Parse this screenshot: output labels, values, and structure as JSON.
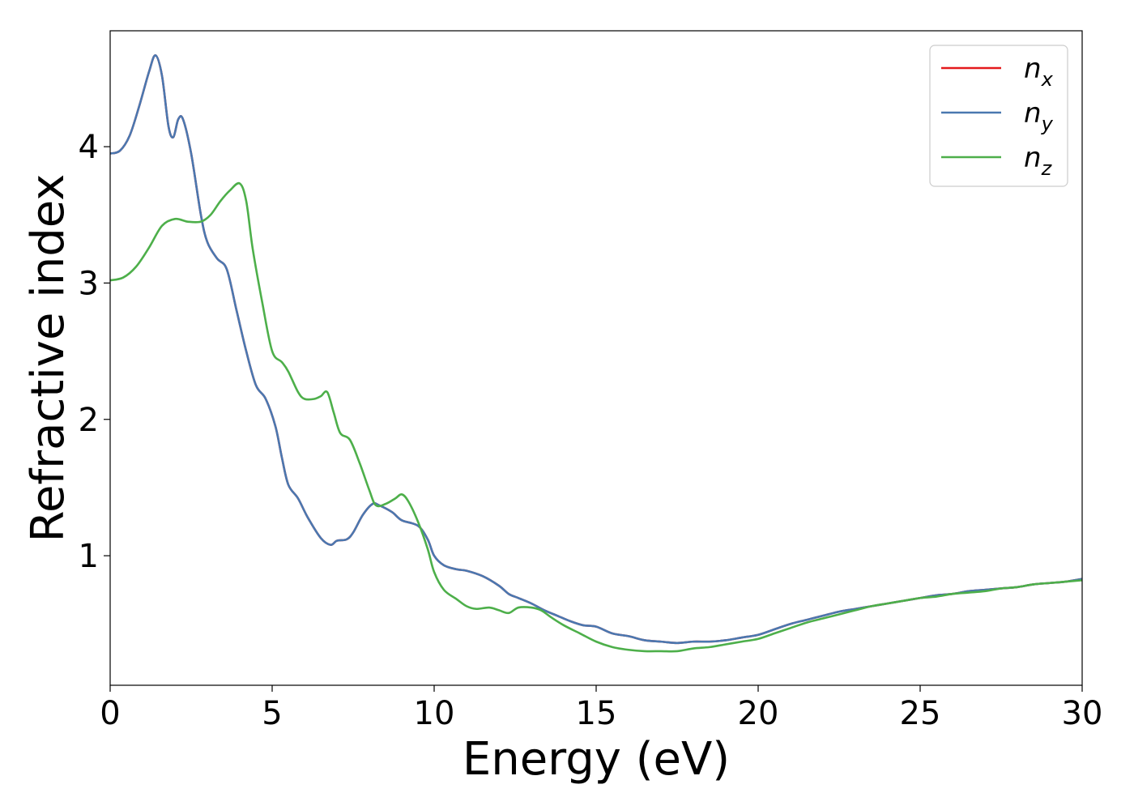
{
  "chart_data": {
    "type": "line",
    "title": "",
    "xlabel": "Energy (eV)",
    "ylabel": "Refractive index",
    "xlim": [
      0,
      30
    ],
    "ylim": [
      0.05,
      4.85
    ],
    "xticks": [
      0,
      5,
      10,
      15,
      20,
      25,
      30
    ],
    "yticks": [
      1,
      2,
      3,
      4
    ],
    "xtick_labels": [
      "0",
      "5",
      "10",
      "15",
      "20",
      "25",
      "30"
    ],
    "ytick_labels": [
      "1",
      "2",
      "3",
      "4"
    ],
    "grid": false,
    "legend_position": "top-right",
    "series": [
      {
        "name": "n_x",
        "symbol": "n",
        "subscript": "x",
        "color": "#e41a1c",
        "points": [
          [
            0,
            3.95
          ],
          [
            0.3,
            3.97
          ],
          [
            0.6,
            4.08
          ],
          [
            0.9,
            4.3
          ],
          [
            1.2,
            4.55
          ],
          [
            1.4,
            4.67
          ],
          [
            1.6,
            4.52
          ],
          [
            1.8,
            4.15
          ],
          [
            1.95,
            4.07
          ],
          [
            2.1,
            4.2
          ],
          [
            2.25,
            4.2
          ],
          [
            2.5,
            3.95
          ],
          [
            2.8,
            3.5
          ],
          [
            3.0,
            3.3
          ],
          [
            3.3,
            3.18
          ],
          [
            3.6,
            3.1
          ],
          [
            3.9,
            2.8
          ],
          [
            4.2,
            2.5
          ],
          [
            4.5,
            2.25
          ],
          [
            4.8,
            2.15
          ],
          [
            5.1,
            1.95
          ],
          [
            5.3,
            1.72
          ],
          [
            5.5,
            1.52
          ],
          [
            5.8,
            1.42
          ],
          [
            6.1,
            1.28
          ],
          [
            6.5,
            1.13
          ],
          [
            6.8,
            1.08
          ],
          [
            7.0,
            1.11
          ],
          [
            7.3,
            1.12
          ],
          [
            7.5,
            1.17
          ],
          [
            7.8,
            1.3
          ],
          [
            8.1,
            1.38
          ],
          [
            8.3,
            1.37
          ],
          [
            8.7,
            1.32
          ],
          [
            9.0,
            1.26
          ],
          [
            9.5,
            1.22
          ],
          [
            9.8,
            1.12
          ],
          [
            10.0,
            1.0
          ],
          [
            10.3,
            0.93
          ],
          [
            10.7,
            0.9
          ],
          [
            11.0,
            0.89
          ],
          [
            11.5,
            0.85
          ],
          [
            12.0,
            0.78
          ],
          [
            12.3,
            0.72
          ],
          [
            12.6,
            0.69
          ],
          [
            13.0,
            0.65
          ],
          [
            13.4,
            0.6
          ],
          [
            13.8,
            0.56
          ],
          [
            14.2,
            0.52
          ],
          [
            14.6,
            0.49
          ],
          [
            15.0,
            0.48
          ],
          [
            15.5,
            0.43
          ],
          [
            16.0,
            0.41
          ],
          [
            16.5,
            0.38
          ],
          [
            17.0,
            0.37
          ],
          [
            17.5,
            0.36
          ],
          [
            18.0,
            0.37
          ],
          [
            18.5,
            0.37
          ],
          [
            19.0,
            0.38
          ],
          [
            19.5,
            0.4
          ],
          [
            20.0,
            0.42
          ],
          [
            20.5,
            0.46
          ],
          [
            21.0,
            0.5
          ],
          [
            21.5,
            0.53
          ],
          [
            22.0,
            0.56
          ],
          [
            22.5,
            0.59
          ],
          [
            23.0,
            0.61
          ],
          [
            23.5,
            0.63
          ],
          [
            24.0,
            0.65
          ],
          [
            24.5,
            0.67
          ],
          [
            25.0,
            0.69
          ],
          [
            25.5,
            0.71
          ],
          [
            26.0,
            0.72
          ],
          [
            26.5,
            0.74
          ],
          [
            27.0,
            0.75
          ],
          [
            27.5,
            0.76
          ],
          [
            28.0,
            0.77
          ],
          [
            28.5,
            0.79
          ],
          [
            29.0,
            0.8
          ],
          [
            29.5,
            0.81
          ],
          [
            30.0,
            0.83
          ]
        ]
      },
      {
        "name": "n_y",
        "symbol": "n",
        "subscript": "y",
        "color": "#4a78b0",
        "points": [
          [
            0,
            3.95
          ],
          [
            0.3,
            3.97
          ],
          [
            0.6,
            4.08
          ],
          [
            0.9,
            4.3
          ],
          [
            1.2,
            4.55
          ],
          [
            1.4,
            4.67
          ],
          [
            1.6,
            4.52
          ],
          [
            1.8,
            4.15
          ],
          [
            1.95,
            4.07
          ],
          [
            2.1,
            4.2
          ],
          [
            2.25,
            4.2
          ],
          [
            2.5,
            3.95
          ],
          [
            2.8,
            3.5
          ],
          [
            3.0,
            3.3
          ],
          [
            3.3,
            3.18
          ],
          [
            3.6,
            3.1
          ],
          [
            3.9,
            2.8
          ],
          [
            4.2,
            2.5
          ],
          [
            4.5,
            2.25
          ],
          [
            4.8,
            2.15
          ],
          [
            5.1,
            1.95
          ],
          [
            5.3,
            1.72
          ],
          [
            5.5,
            1.52
          ],
          [
            5.8,
            1.42
          ],
          [
            6.1,
            1.28
          ],
          [
            6.5,
            1.13
          ],
          [
            6.8,
            1.08
          ],
          [
            7.0,
            1.11
          ],
          [
            7.3,
            1.12
          ],
          [
            7.5,
            1.17
          ],
          [
            7.8,
            1.3
          ],
          [
            8.1,
            1.38
          ],
          [
            8.3,
            1.37
          ],
          [
            8.7,
            1.32
          ],
          [
            9.0,
            1.26
          ],
          [
            9.5,
            1.22
          ],
          [
            9.8,
            1.12
          ],
          [
            10.0,
            1.0
          ],
          [
            10.3,
            0.93
          ],
          [
            10.7,
            0.9
          ],
          [
            11.0,
            0.89
          ],
          [
            11.5,
            0.85
          ],
          [
            12.0,
            0.78
          ],
          [
            12.3,
            0.72
          ],
          [
            12.6,
            0.69
          ],
          [
            13.0,
            0.65
          ],
          [
            13.4,
            0.6
          ],
          [
            13.8,
            0.56
          ],
          [
            14.2,
            0.52
          ],
          [
            14.6,
            0.49
          ],
          [
            15.0,
            0.48
          ],
          [
            15.5,
            0.43
          ],
          [
            16.0,
            0.41
          ],
          [
            16.5,
            0.38
          ],
          [
            17.0,
            0.37
          ],
          [
            17.5,
            0.36
          ],
          [
            18.0,
            0.37
          ],
          [
            18.5,
            0.37
          ],
          [
            19.0,
            0.38
          ],
          [
            19.5,
            0.4
          ],
          [
            20.0,
            0.42
          ],
          [
            20.5,
            0.46
          ],
          [
            21.0,
            0.5
          ],
          [
            21.5,
            0.53
          ],
          [
            22.0,
            0.56
          ],
          [
            22.5,
            0.59
          ],
          [
            23.0,
            0.61
          ],
          [
            23.5,
            0.63
          ],
          [
            24.0,
            0.65
          ],
          [
            24.5,
            0.67
          ],
          [
            25.0,
            0.69
          ],
          [
            25.5,
            0.71
          ],
          [
            26.0,
            0.72
          ],
          [
            26.5,
            0.74
          ],
          [
            27.0,
            0.75
          ],
          [
            27.5,
            0.76
          ],
          [
            28.0,
            0.77
          ],
          [
            28.5,
            0.79
          ],
          [
            29.0,
            0.8
          ],
          [
            29.5,
            0.81
          ],
          [
            30.0,
            0.83
          ]
        ]
      },
      {
        "name": "n_z",
        "symbol": "n",
        "subscript": "z",
        "color": "#4daf4a",
        "points": [
          [
            0,
            3.02
          ],
          [
            0.4,
            3.04
          ],
          [
            0.8,
            3.12
          ],
          [
            1.2,
            3.26
          ],
          [
            1.6,
            3.42
          ],
          [
            2.0,
            3.47
          ],
          [
            2.4,
            3.45
          ],
          [
            2.8,
            3.45
          ],
          [
            3.1,
            3.5
          ],
          [
            3.4,
            3.6
          ],
          [
            3.7,
            3.68
          ],
          [
            4.0,
            3.73
          ],
          [
            4.2,
            3.6
          ],
          [
            4.4,
            3.25
          ],
          [
            4.7,
            2.85
          ],
          [
            5.0,
            2.5
          ],
          [
            5.3,
            2.42
          ],
          [
            5.5,
            2.35
          ],
          [
            5.8,
            2.2
          ],
          [
            6.0,
            2.15
          ],
          [
            6.3,
            2.15
          ],
          [
            6.5,
            2.17
          ],
          [
            6.7,
            2.2
          ],
          [
            6.9,
            2.05
          ],
          [
            7.1,
            1.9
          ],
          [
            7.4,
            1.85
          ],
          [
            7.7,
            1.68
          ],
          [
            8.0,
            1.48
          ],
          [
            8.2,
            1.37
          ],
          [
            8.5,
            1.38
          ],
          [
            8.8,
            1.42
          ],
          [
            9.0,
            1.45
          ],
          [
            9.2,
            1.4
          ],
          [
            9.5,
            1.25
          ],
          [
            9.8,
            1.05
          ],
          [
            10.0,
            0.88
          ],
          [
            10.3,
            0.75
          ],
          [
            10.7,
            0.68
          ],
          [
            11.0,
            0.63
          ],
          [
            11.3,
            0.61
          ],
          [
            11.7,
            0.62
          ],
          [
            12.0,
            0.6
          ],
          [
            12.3,
            0.58
          ],
          [
            12.6,
            0.62
          ],
          [
            13.0,
            0.62
          ],
          [
            13.3,
            0.6
          ],
          [
            13.6,
            0.55
          ],
          [
            14.0,
            0.49
          ],
          [
            14.5,
            0.43
          ],
          [
            15.0,
            0.37
          ],
          [
            15.5,
            0.33
          ],
          [
            16.0,
            0.31
          ],
          [
            16.5,
            0.3
          ],
          [
            17.0,
            0.3
          ],
          [
            17.5,
            0.3
          ],
          [
            18.0,
            0.32
          ],
          [
            18.5,
            0.33
          ],
          [
            19.0,
            0.35
          ],
          [
            19.5,
            0.37
          ],
          [
            20.0,
            0.39
          ],
          [
            20.5,
            0.43
          ],
          [
            21.0,
            0.47
          ],
          [
            21.5,
            0.51
          ],
          [
            22.0,
            0.54
          ],
          [
            22.5,
            0.57
          ],
          [
            23.0,
            0.6
          ],
          [
            23.5,
            0.63
          ],
          [
            24.0,
            0.65
          ],
          [
            24.5,
            0.67
          ],
          [
            25.0,
            0.69
          ],
          [
            25.5,
            0.7
          ],
          [
            26.0,
            0.72
          ],
          [
            26.5,
            0.73
          ],
          [
            27.0,
            0.74
          ],
          [
            27.5,
            0.76
          ],
          [
            28.0,
            0.77
          ],
          [
            28.5,
            0.79
          ],
          [
            29.0,
            0.8
          ],
          [
            29.5,
            0.81
          ],
          [
            30.0,
            0.82
          ]
        ]
      }
    ]
  }
}
